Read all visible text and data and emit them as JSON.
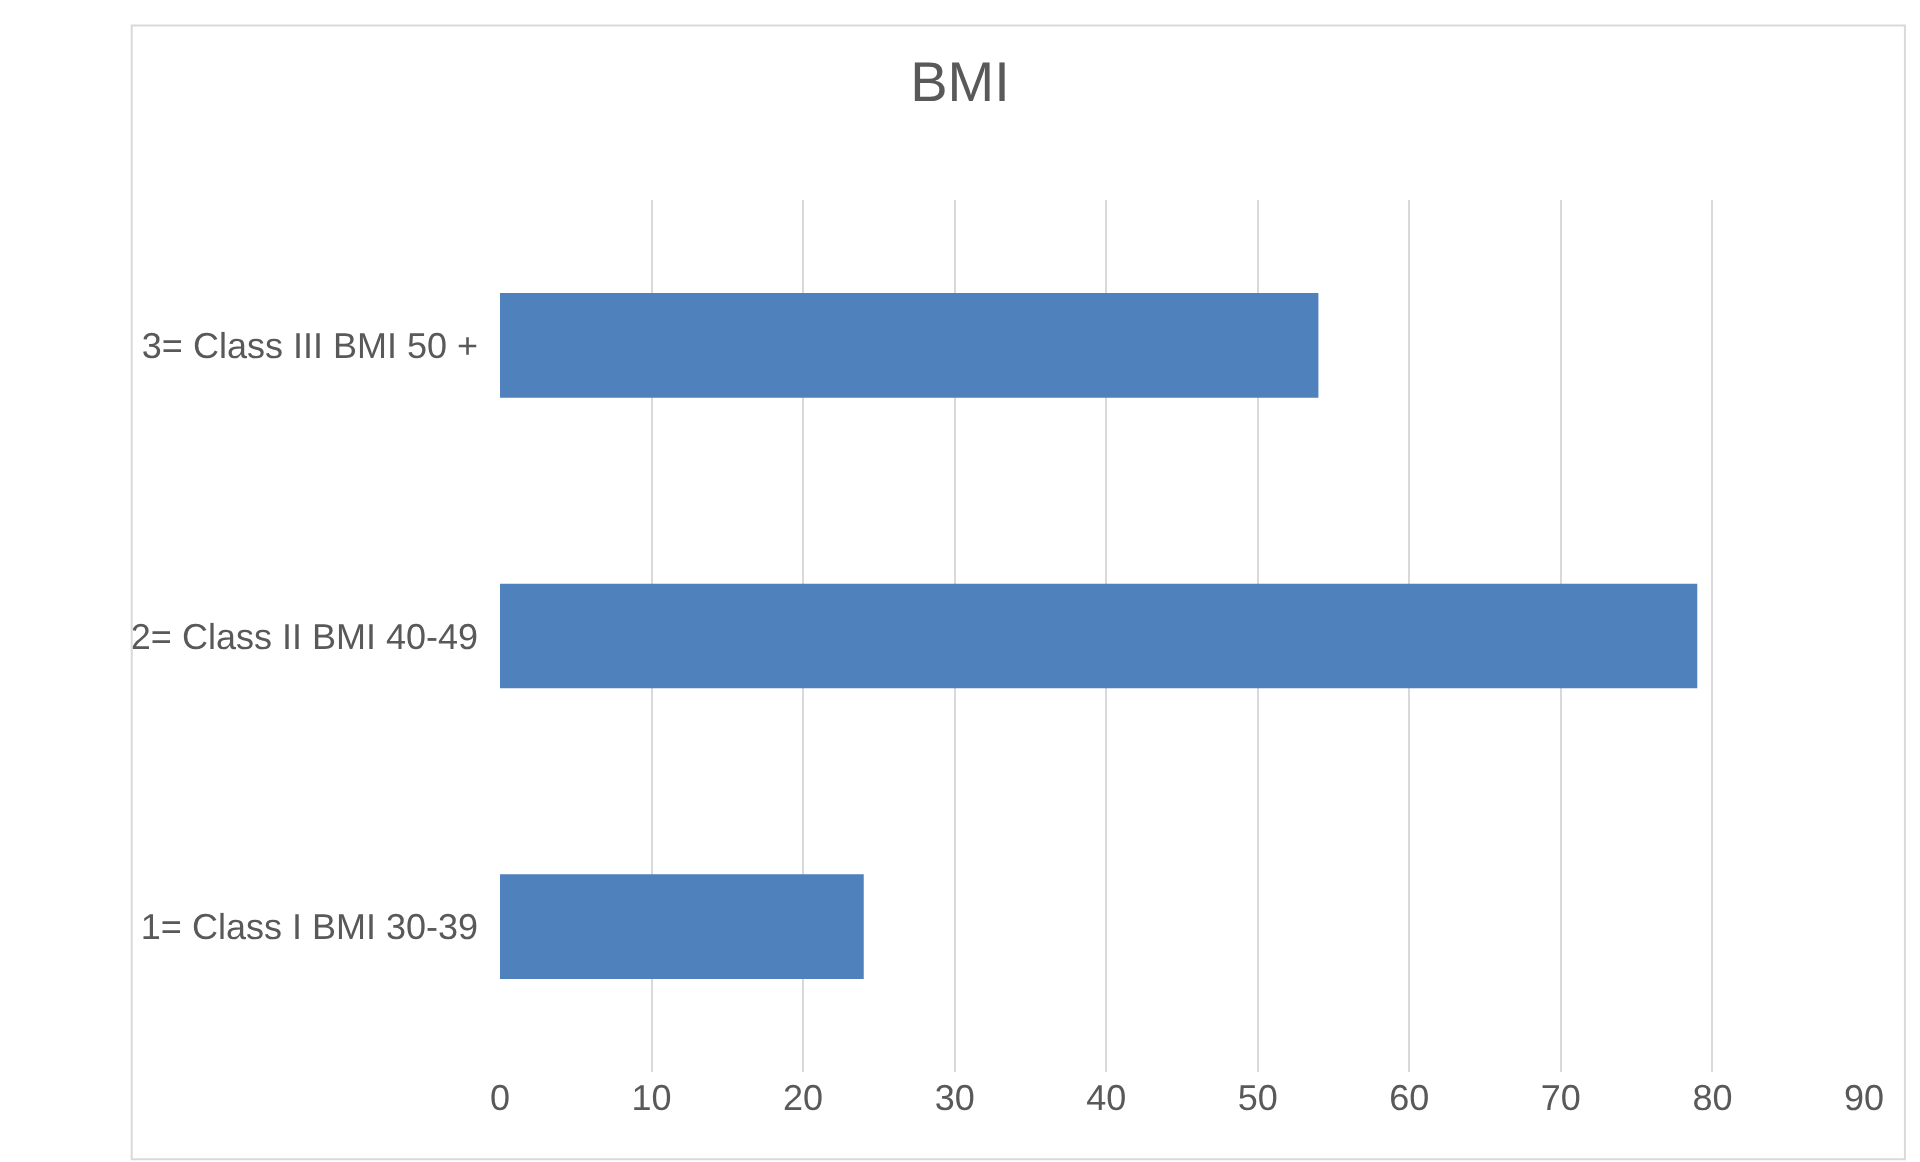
{
  "chart_data": {
    "type": "bar",
    "title": "BMI",
    "orientation": "horizontal",
    "categories": [
      "3= Class III BMI 50 +",
      "2= Class II BMI 40-49",
      "1= Class I BMI 30-39"
    ],
    "values": [
      54,
      79,
      24
    ],
    "color": "#4f81bd",
    "xlim": [
      0,
      90
    ],
    "xticks": [
      0,
      10,
      20,
      30,
      40,
      50,
      60,
      70,
      80,
      90
    ],
    "grid": "x",
    "legend": false
  }
}
